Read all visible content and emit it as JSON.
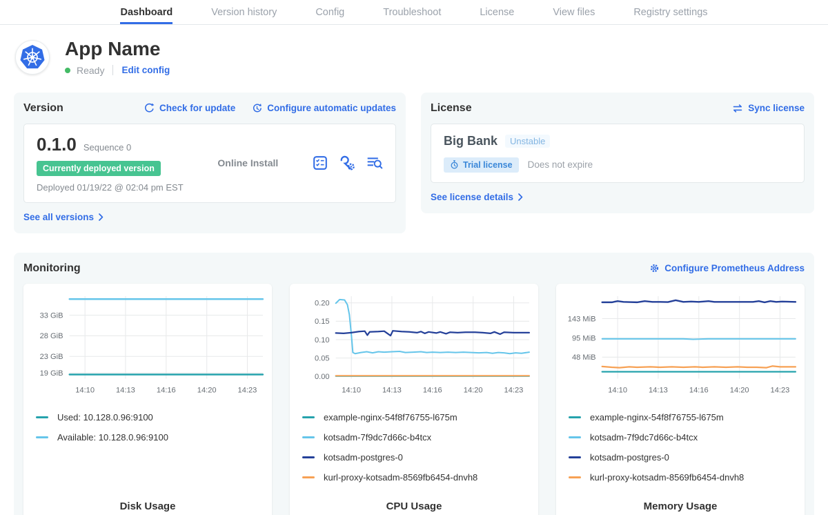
{
  "colors": {
    "accent_blue": "#326de6",
    "deployed_green": "#47c491",
    "card_bg": "#f4f8f9",
    "series_teal": "#25a2ac",
    "series_light_blue": "#65c5ea",
    "series_navy": "#244099",
    "series_orange": "#f7a154"
  },
  "icons": [
    "kubernetes-logo",
    "refresh-icon",
    "schedule-icon",
    "preflight-checks-icon",
    "config-wrench-icon",
    "view-logs-icon",
    "sync-icon",
    "stopwatch-icon",
    "gear-icon",
    "chevron-right-icon"
  ],
  "nav": {
    "tabs": [
      {
        "label": "Dashboard",
        "active": true
      },
      {
        "label": "Version history",
        "active": false
      },
      {
        "label": "Config",
        "active": false
      },
      {
        "label": "Troubleshoot",
        "active": false
      },
      {
        "label": "License",
        "active": false
      },
      {
        "label": "View files",
        "active": false
      },
      {
        "label": "Registry settings",
        "active": false
      }
    ]
  },
  "app_header": {
    "title": "App Name",
    "status": "Ready",
    "edit_config_label": "Edit config"
  },
  "version_card": {
    "title": "Version",
    "check_update_label": "Check for update",
    "auto_updates_label": "Configure automatic updates",
    "version_number": "0.1.0",
    "sequence_label": "Sequence 0",
    "deployed_badge": "Currently deployed version",
    "deployed_date": "Deployed 01/19/22 @ 02:04 pm EST",
    "install_type": "Online Install",
    "see_all_label": "See all versions"
  },
  "license_card": {
    "title": "License",
    "sync_label": "Sync license",
    "licensee": "Big Bank",
    "channel_badge": "Unstable",
    "trial_badge": "Trial license",
    "expiry": "Does not expire",
    "details_label": "See license details"
  },
  "monitoring": {
    "title": "Monitoring",
    "configure_label": "Configure Prometheus Address"
  },
  "chart_data": [
    {
      "type": "line",
      "title": "Disk Usage",
      "x_tick_labels": [
        "14:10",
        "14:13",
        "14:16",
        "14:20",
        "14:23"
      ],
      "x_tick_pos": [
        0.08,
        0.29,
        0.5,
        0.71,
        0.92
      ],
      "y_domain": [
        17.6,
        37.6
      ],
      "y_ticks": [
        {
          "value": 33,
          "label": "33 GiB"
        },
        {
          "value": 28,
          "label": "28 GiB"
        },
        {
          "value": 23,
          "label": "23 GiB"
        },
        {
          "value": 19,
          "label": "19 GiB"
        }
      ],
      "series": [
        {
          "name": "Used: 10.128.0.96:9100",
          "color": "#25a2ac",
          "width": 2.4,
          "points": [
            [
              0,
              18.6
            ],
            [
              1,
              18.6
            ]
          ]
        },
        {
          "name": "Available: 10.128.0.96:9100",
          "color": "#65c5ea",
          "width": 2.4,
          "points": [
            [
              0,
              36.9
            ],
            [
              1,
              36.9
            ]
          ]
        }
      ]
    },
    {
      "type": "line",
      "title": "CPU Usage",
      "x_tick_labels": [
        "14:10",
        "14:13",
        "14:16",
        "14:20",
        "14:23"
      ],
      "x_tick_pos": [
        0.08,
        0.29,
        0.5,
        0.71,
        0.92
      ],
      "y_domain": [
        -0.006,
        0.218
      ],
      "y_ticks": [
        {
          "value": 0.2,
          "label": "0.20"
        },
        {
          "value": 0.15,
          "label": "0.15"
        },
        {
          "value": 0.1,
          "label": "0.10"
        },
        {
          "value": 0.05,
          "label": "0.05"
        },
        {
          "value": 0.0,
          "label": "0.00"
        }
      ],
      "series": [
        {
          "name": "example-nginx-54f8f76755-l675m",
          "color": "#25a2ac",
          "width": 2,
          "points": [
            [
              0,
              0.001
            ],
            [
              1,
              0.001
            ]
          ]
        },
        {
          "name": "kotsadm-7f9dc7d66c-b4tcx",
          "color": "#65c5ea",
          "width": 2,
          "points": [
            [
              0,
              0.199
            ],
            [
              0.02,
              0.209
            ],
            [
              0.045,
              0.208
            ],
            [
              0.06,
              0.195
            ],
            [
              0.07,
              0.168
            ],
            [
              0.08,
              0.115
            ],
            [
              0.088,
              0.065
            ],
            [
              0.1,
              0.062
            ],
            [
              0.13,
              0.065
            ],
            [
              0.16,
              0.067
            ],
            [
              0.19,
              0.064
            ],
            [
              0.22,
              0.067
            ],
            [
              0.25,
              0.066
            ],
            [
              0.29,
              0.067
            ],
            [
              0.33,
              0.068
            ],
            [
              0.36,
              0.065
            ],
            [
              0.4,
              0.066
            ],
            [
              0.44,
              0.067
            ],
            [
              0.47,
              0.065
            ],
            [
              0.5,
              0.066
            ],
            [
              0.54,
              0.065
            ],
            [
              0.58,
              0.066
            ],
            [
              0.62,
              0.065
            ],
            [
              0.66,
              0.066
            ],
            [
              0.7,
              0.065
            ],
            [
              0.74,
              0.064
            ],
            [
              0.78,
              0.065
            ],
            [
              0.81,
              0.063
            ],
            [
              0.84,
              0.065
            ],
            [
              0.87,
              0.064
            ],
            [
              0.9,
              0.062
            ],
            [
              0.93,
              0.064
            ],
            [
              0.96,
              0.063
            ],
            [
              1,
              0.066
            ]
          ]
        },
        {
          "name": "kotsadm-postgres-0",
          "color": "#244099",
          "width": 2.2,
          "points": [
            [
              0,
              0.118
            ],
            [
              0.04,
              0.117
            ],
            [
              0.08,
              0.119
            ],
            [
              0.12,
              0.122
            ],
            [
              0.15,
              0.123
            ],
            [
              0.163,
              0.112
            ],
            [
              0.175,
              0.121
            ],
            [
              0.22,
              0.122
            ],
            [
              0.25,
              0.123
            ],
            [
              0.283,
              0.111
            ],
            [
              0.295,
              0.124
            ],
            [
              0.34,
              0.122
            ],
            [
              0.38,
              0.121
            ],
            [
              0.42,
              0.119
            ],
            [
              0.44,
              0.122
            ],
            [
              0.46,
              0.117
            ],
            [
              0.48,
              0.121
            ],
            [
              0.52,
              0.118
            ],
            [
              0.54,
              0.121
            ],
            [
              0.57,
              0.116
            ],
            [
              0.59,
              0.12
            ],
            [
              0.63,
              0.119
            ],
            [
              0.67,
              0.12
            ],
            [
              0.72,
              0.12
            ],
            [
              0.76,
              0.119
            ],
            [
              0.8,
              0.117
            ],
            [
              0.82,
              0.121
            ],
            [
              0.85,
              0.115
            ],
            [
              0.87,
              0.12
            ],
            [
              0.92,
              0.119
            ],
            [
              1,
              0.119
            ]
          ]
        },
        {
          "name": "kurl-proxy-kotsadm-8569fb6454-dnvh8",
          "color": "#f7a154",
          "width": 2,
          "points": [
            [
              0,
              0.002
            ],
            [
              1,
              0.002
            ]
          ]
        }
      ]
    },
    {
      "type": "line",
      "title": "Memory Usage",
      "x_tick_labels": [
        "14:10",
        "14:13",
        "14:16",
        "14:20",
        "14:23"
      ],
      "x_tick_pos": [
        0.08,
        0.29,
        0.5,
        0.71,
        0.92
      ],
      "y_domain": [
        -5,
        198
      ],
      "y_ticks": [
        {
          "value": 143,
          "label": "143 MiB"
        },
        {
          "value": 95,
          "label": "95 MiB"
        },
        {
          "value": 48,
          "label": "48 MiB"
        }
      ],
      "series": [
        {
          "name": "example-nginx-54f8f76755-l675m",
          "color": "#25a2ac",
          "width": 2.2,
          "points": [
            [
              0,
              12
            ],
            [
              1,
              12
            ]
          ]
        },
        {
          "name": "kotsadm-7f9dc7d66c-b4tcx",
          "color": "#65c5ea",
          "width": 2,
          "points": [
            [
              0,
              93
            ],
            [
              0.42,
              93
            ],
            [
              0.47,
              91.8
            ],
            [
              0.55,
              93
            ],
            [
              1,
              93
            ]
          ]
        },
        {
          "name": "kotsadm-postgres-0",
          "color": "#244099",
          "width": 2.4,
          "points": [
            [
              0,
              183
            ],
            [
              0.05,
              183
            ],
            [
              0.08,
              186
            ],
            [
              0.11,
              184
            ],
            [
              0.14,
              183.5
            ],
            [
              0.18,
              183
            ],
            [
              0.22,
              186
            ],
            [
              0.26,
              184
            ],
            [
              0.3,
              184
            ],
            [
              0.34,
              183.5
            ],
            [
              0.38,
              188
            ],
            [
              0.42,
              184
            ],
            [
              0.46,
              185
            ],
            [
              0.5,
              184
            ],
            [
              0.55,
              186
            ],
            [
              0.58,
              184
            ],
            [
              0.63,
              184
            ],
            [
              0.68,
              184
            ],
            [
              0.73,
              184
            ],
            [
              0.78,
              184
            ],
            [
              0.81,
              186
            ],
            [
              0.84,
              183
            ],
            [
              0.87,
              186
            ],
            [
              0.9,
              184
            ],
            [
              0.93,
              185
            ],
            [
              1,
              184
            ]
          ]
        },
        {
          "name": "kurl-proxy-kotsadm-8569fb6454-dnvh8",
          "color": "#f7a154",
          "width": 2.2,
          "points": [
            [
              0,
              25
            ],
            [
              0.05,
              23
            ],
            [
              0.09,
              22
            ],
            [
              0.14,
              24
            ],
            [
              0.18,
              23
            ],
            [
              0.25,
              24
            ],
            [
              0.3,
              23
            ],
            [
              0.36,
              24
            ],
            [
              0.42,
              23
            ],
            [
              0.48,
              24
            ],
            [
              0.52,
              23
            ],
            [
              0.58,
              24
            ],
            [
              0.64,
              23
            ],
            [
              0.7,
              24
            ],
            [
              0.75,
              23
            ],
            [
              0.8,
              23
            ],
            [
              0.85,
              22
            ],
            [
              0.88,
              26
            ],
            [
              0.92,
              24
            ],
            [
              1,
              24
            ]
          ]
        }
      ]
    }
  ]
}
